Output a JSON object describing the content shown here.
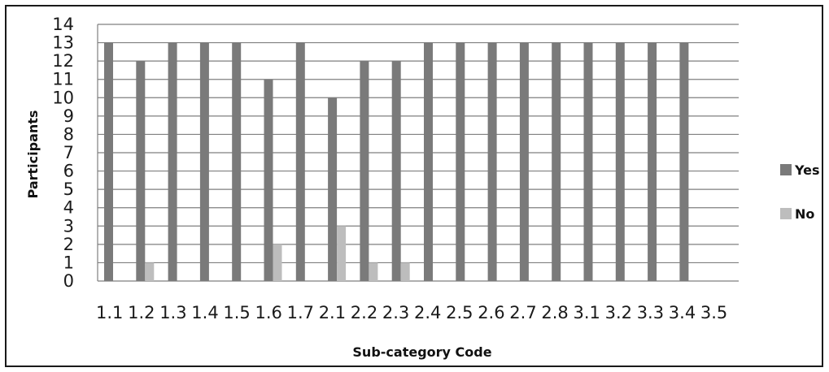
{
  "chart_data": {
    "type": "bar",
    "title": "",
    "xlabel": "Sub-category Code",
    "ylabel": "Participants",
    "ylim": [
      0,
      14
    ],
    "yticks": [
      0,
      1,
      2,
      3,
      4,
      5,
      6,
      7,
      8,
      9,
      10,
      11,
      12,
      13,
      14
    ],
    "grid": true,
    "legend_position": "right",
    "categories": [
      "1.1",
      "1.2",
      "1.3",
      "1.4",
      "1.5",
      "1.6",
      "1.7",
      "2.1",
      "2.2",
      "2.3",
      "2.4",
      "2.5",
      "2.6",
      "2.7",
      "2.8",
      "3.1",
      "3.2",
      "3.3",
      "3.4",
      "3.5"
    ],
    "series": [
      {
        "name": "Yes",
        "color": "#7a7a7a",
        "values": [
          13,
          12,
          13,
          13,
          13,
          11,
          13,
          10,
          12,
          12,
          13,
          13,
          13,
          13,
          13,
          13,
          13,
          13,
          13,
          0
        ]
      },
      {
        "name": "No",
        "color": "#bdbdbd",
        "values": [
          0,
          1,
          0,
          0,
          0,
          2,
          0,
          3,
          1,
          1,
          0,
          0,
          0,
          0,
          0,
          0,
          0,
          0,
          0,
          0
        ]
      }
    ]
  }
}
